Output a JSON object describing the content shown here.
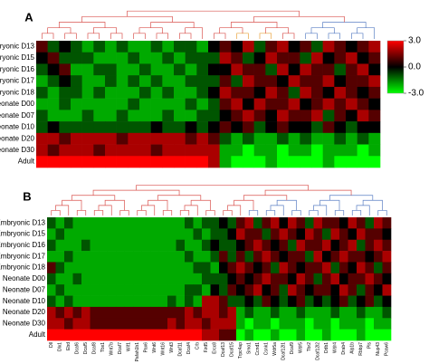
{
  "chart_data": [
    {
      "type": "heatmap",
      "title": "A",
      "colors": {
        "low": "#00ff00",
        "mid": "#000000",
        "high": "#ff0000"
      },
      "zlim": [
        -3,
        3
      ],
      "zticks": [
        {
          "value": 3,
          "label": "3.0"
        },
        {
          "value": 0,
          "label": "0.0"
        },
        {
          "value": -3,
          "label": "-3.0"
        }
      ],
      "series": [
        {
          "name": "Embryonic D13",
          "values": [
            1,
            -1,
            0,
            -1,
            -2,
            -1,
            -2,
            -1,
            -2,
            -2,
            -1,
            -2,
            -1,
            -1,
            -2,
            0,
            1,
            0,
            2,
            -1,
            1,
            2,
            0,
            1,
            -1,
            2,
            1,
            0,
            1,
            2
          ]
        },
        {
          "name": "Embryonic D15",
          "values": [
            0,
            1,
            -1,
            -1,
            -1,
            -2,
            -2,
            -2,
            -1,
            -2,
            -2,
            -1,
            -2,
            -1,
            -1,
            -1,
            2,
            1,
            -1,
            0,
            2,
            1,
            1,
            -1,
            2,
            0,
            1,
            2,
            0,
            1
          ]
        },
        {
          "name": "Embryonic D16",
          "values": [
            -1,
            0,
            1,
            -2,
            -2,
            -1,
            -1,
            -2,
            -2,
            -1,
            -2,
            -2,
            -1,
            -2,
            -1,
            0,
            0,
            2,
            1,
            1,
            -1,
            2,
            0,
            2,
            1,
            1,
            -1,
            1,
            2,
            0
          ]
        },
        {
          "name": "Embryonic D17",
          "values": [
            -2,
            -1,
            0,
            -1,
            -2,
            -2,
            -1,
            -2,
            -1,
            -2,
            -1,
            -2,
            -2,
            -1,
            -1,
            -1,
            1,
            -1,
            2,
            1,
            1,
            0,
            2,
            1,
            1,
            2,
            0,
            1,
            1,
            2
          ]
        },
        {
          "name": "Embryonic D18",
          "values": [
            -1,
            -2,
            -1,
            -1,
            -2,
            -1,
            -2,
            -2,
            -2,
            -1,
            -2,
            -1,
            -2,
            -2,
            -1,
            0,
            2,
            1,
            1,
            0,
            2,
            1,
            -1,
            2,
            1,
            0,
            2,
            1,
            0,
            1
          ]
        },
        {
          "name": "Neonate D00",
          "values": [
            -2,
            -2,
            -1,
            -2,
            -2,
            -2,
            -2,
            -2,
            -1,
            -2,
            -2,
            -2,
            -2,
            -1,
            -2,
            -1,
            1,
            2,
            0,
            2,
            1,
            1,
            2,
            0,
            1,
            2,
            1,
            2,
            1,
            0
          ]
        },
        {
          "name": "Neonate D07",
          "values": [
            -1,
            -2,
            -2,
            -2,
            -1,
            -2,
            -2,
            -1,
            -2,
            -2,
            -2,
            -1,
            -2,
            -2,
            -1,
            -1,
            0,
            1,
            2,
            1,
            0,
            2,
            1,
            1,
            2,
            -1,
            1,
            0,
            2,
            1
          ]
        },
        {
          "name": "Neonate D10",
          "values": [
            -1,
            0,
            -1,
            -1,
            -1,
            -1,
            -1,
            -1,
            -1,
            -1,
            0,
            -1,
            -1,
            0,
            -1,
            0,
            1,
            0,
            1,
            -1,
            0,
            1,
            0,
            0,
            -1,
            1,
            0,
            -1,
            0,
            0
          ]
        },
        {
          "name": "Neonate D20",
          "values": [
            2,
            2,
            1,
            2,
            2,
            2,
            2,
            1,
            2,
            2,
            2,
            2,
            2,
            1,
            2,
            1,
            -1,
            -2,
            -1,
            -2,
            -2,
            -1,
            -2,
            -1,
            -2,
            -2,
            -1,
            -2,
            -1,
            -2
          ]
        },
        {
          "name": "Neonate D30",
          "values": [
            2,
            1,
            2,
            2,
            2,
            1,
            2,
            2,
            2,
            2,
            1,
            2,
            2,
            2,
            2,
            2,
            -2,
            -2,
            -3,
            -2,
            -2,
            -3,
            -2,
            -2,
            -3,
            -2,
            -2,
            -2,
            -3,
            -2
          ]
        },
        {
          "name": "Adult",
          "values": [
            3,
            3,
            3,
            3,
            3,
            3,
            3,
            3,
            3,
            3,
            3,
            3,
            3,
            3,
            3,
            2,
            -2,
            -3,
            -3,
            -3,
            -2,
            -3,
            -3,
            -3,
            -3,
            -2,
            -3,
            -3,
            -3,
            -3
          ]
        }
      ]
    },
    {
      "type": "heatmap",
      "title": "B",
      "colors": {
        "low": "#00ff00",
        "mid": "#000000",
        "high": "#ff0000"
      },
      "zlim": [
        -3,
        3
      ],
      "categories": [
        "Dll",
        "Dlx1",
        "Ebd",
        "Dcaf6",
        "Dcaf5",
        "Dcaf8",
        "Tbx1",
        "Wnt7b",
        "Dcaf7",
        "Wif1",
        "Pafah1b1",
        "Pax6",
        "Wnt6",
        "Wnt16",
        "Wnt3",
        "Dcaf11",
        "Dcaf4",
        "Crb",
        "Fzd5",
        "Ercc8",
        "Dcaf13",
        "Dcaf15",
        "Trpc4ap",
        "Smo1",
        "Ccnd1",
        "Csnk1",
        "Wdr5a",
        "Dcaf12l1",
        "Dcaf9",
        "Wdr5",
        "Tbr2",
        "Dcaf12l2",
        "Ddb1",
        "Wdr4",
        "Drab4",
        "Alp1b",
        "Rbbp7",
        "Pls",
        "Nup43",
        "Pcaw6"
      ],
      "series": [
        {
          "name": "Embryonic D13",
          "values": [
            -1,
            -2,
            -1,
            -2,
            -2,
            -2,
            -2,
            -2,
            -2,
            -2,
            -2,
            -2,
            -2,
            -2,
            -2,
            -2,
            -1,
            -2,
            -1,
            -1,
            0,
            -1,
            1,
            2,
            -1,
            1,
            2,
            0,
            2,
            1,
            -1,
            2,
            1,
            1,
            0,
            2,
            1,
            -1,
            2,
            1
          ]
        },
        {
          "name": "Embryonic D15",
          "values": [
            -2,
            -1,
            -2,
            -2,
            -2,
            -2,
            -2,
            -2,
            -2,
            -2,
            -2,
            -2,
            -2,
            -2,
            -2,
            -2,
            -2,
            -1,
            -2,
            -1,
            -1,
            0,
            2,
            1,
            1,
            -1,
            1,
            2,
            1,
            0,
            2,
            1,
            -1,
            2,
            1,
            0,
            2,
            1,
            1,
            0
          ]
        },
        {
          "name": "Embryonic D16",
          "values": [
            -1,
            -2,
            -2,
            -2,
            -1,
            -2,
            -2,
            -2,
            -2,
            -2,
            -2,
            -2,
            -2,
            -2,
            -2,
            -1,
            -2,
            -2,
            -1,
            0,
            -1,
            -1,
            0,
            1,
            2,
            1,
            0,
            1,
            -1,
            2,
            1,
            1,
            2,
            0,
            1,
            2,
            -1,
            1,
            2,
            1
          ]
        },
        {
          "name": "Embryonic D17",
          "values": [
            -2,
            -2,
            -1,
            -2,
            -2,
            -2,
            -2,
            -2,
            -2,
            -2,
            -2,
            -2,
            -2,
            -2,
            -2,
            -2,
            -1,
            -2,
            -2,
            -1,
            1,
            -1,
            1,
            -1,
            1,
            2,
            1,
            0,
            1,
            1,
            -1,
            2,
            0,
            1,
            2,
            1,
            1,
            0,
            1,
            2
          ]
        },
        {
          "name": "Embryonic D18",
          "values": [
            1,
            -1,
            -2,
            -2,
            -2,
            -2,
            -2,
            -2,
            -2,
            -2,
            -2,
            -2,
            -2,
            -2,
            -2,
            -2,
            -2,
            -1,
            -1,
            -2,
            0,
            1,
            2,
            1,
            0,
            1,
            -1,
            2,
            1,
            0,
            1,
            1,
            2,
            -1,
            1,
            0,
            2,
            1,
            -1,
            1
          ]
        },
        {
          "name": "Neonate D00",
          "values": [
            -1,
            -2,
            -2,
            -1,
            -2,
            -2,
            -2,
            -2,
            -2,
            -2,
            -2,
            -2,
            -2,
            -2,
            -2,
            -2,
            -2,
            -2,
            -1,
            -1,
            -1,
            0,
            1,
            0,
            1,
            2,
            1,
            1,
            0,
            2,
            1,
            -1,
            1,
            2,
            0,
            1,
            1,
            2,
            1,
            0
          ]
        },
        {
          "name": "Neonate D07",
          "values": [
            -2,
            -1,
            -2,
            -2,
            -2,
            -2,
            -2,
            -2,
            -2,
            -2,
            -2,
            -2,
            -2,
            -2,
            -2,
            -2,
            -1,
            -1,
            -2,
            0,
            -1,
            1,
            0,
            1,
            2,
            0,
            1,
            -1,
            2,
            1,
            0,
            1,
            1,
            0,
            2,
            1,
            -1,
            1,
            0,
            2
          ]
        },
        {
          "name": "Neonate D10",
          "values": [
            -1,
            -2,
            -1,
            -2,
            -2,
            -2,
            -2,
            -2,
            -2,
            -2,
            -2,
            -2,
            -2,
            -2,
            -1,
            -2,
            -1,
            -2,
            2,
            2,
            1,
            -1,
            -1,
            0,
            -1,
            1,
            0,
            -1,
            0,
            1,
            -1,
            0,
            -1,
            0,
            1,
            -1,
            0,
            1,
            -1,
            0
          ]
        },
        {
          "name": "Neonate D20",
          "values": [
            2,
            1,
            2,
            1,
            2,
            1,
            1,
            1,
            1,
            1,
            1,
            1,
            1,
            1,
            1,
            1,
            2,
            1,
            2,
            2,
            1,
            2,
            -2,
            -1,
            -2,
            -2,
            -1,
            -2,
            -2,
            -1,
            -2,
            -2,
            -2,
            -1,
            -2,
            -2,
            -1,
            -2,
            -2,
            -1
          ]
        },
        {
          "name": "Neonate D30",
          "values": [
            2,
            2,
            1,
            2,
            2,
            1,
            1,
            1,
            1,
            1,
            1,
            1,
            1,
            1,
            2,
            1,
            2,
            2,
            1,
            2,
            2,
            2,
            -2,
            -3,
            -2,
            -2,
            -3,
            -2,
            -2,
            -2,
            -3,
            -2,
            -2,
            -3,
            -2,
            -2,
            -2,
            -3,
            -2,
            -2
          ]
        },
        {
          "name": "Adult",
          "values": [
            3,
            3,
            3,
            3,
            3,
            3,
            3,
            3,
            3,
            3,
            3,
            3,
            3,
            3,
            3,
            3,
            3,
            3,
            2,
            2,
            1,
            1,
            -3,
            -2,
            -3,
            -3,
            -2,
            -3,
            -3,
            -2,
            -3,
            -3,
            -2,
            -3,
            -3,
            -3,
            -2,
            -3,
            -3,
            -3
          ]
        }
      ]
    }
  ]
}
